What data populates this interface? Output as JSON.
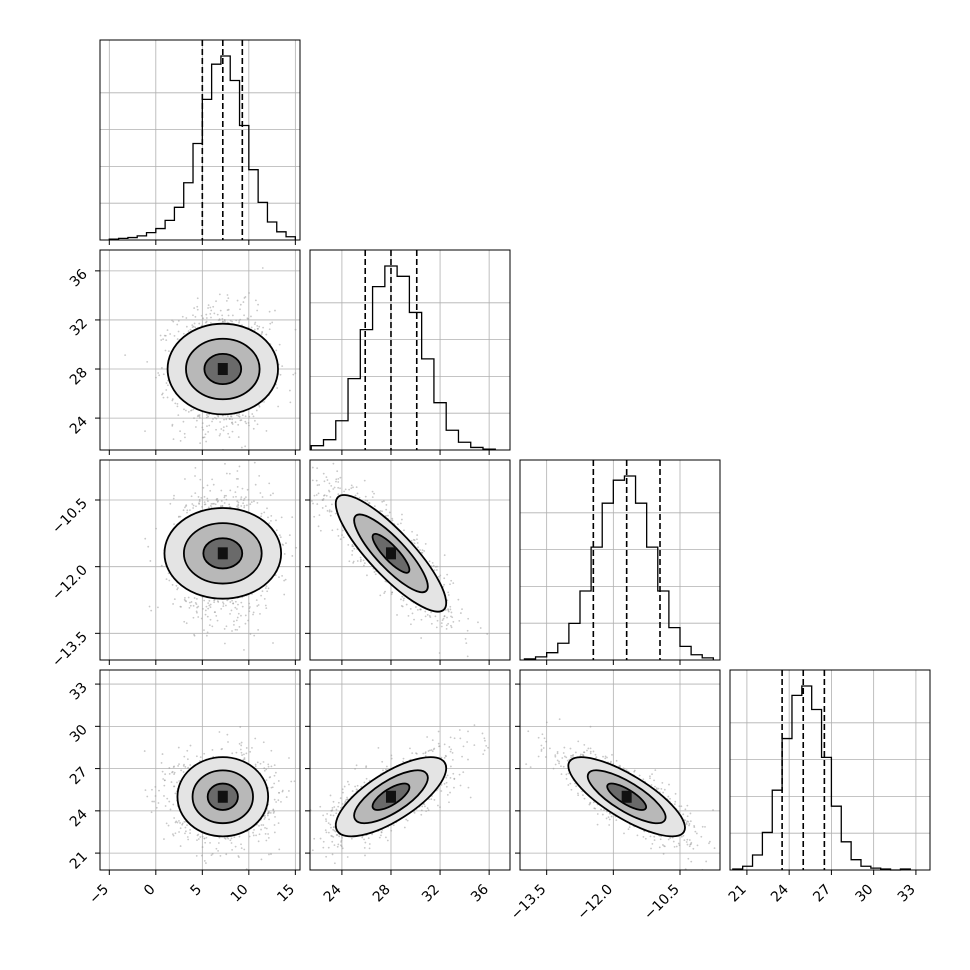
{
  "chart_data": {
    "type": "corner",
    "parameters": [
      {
        "range": [
          -6,
          15.5
        ],
        "ticks": [
          -5,
          0,
          5,
          10,
          15
        ],
        "tick_labels": [
          "−5",
          "0",
          "5",
          "10",
          "15"
        ],
        "mean": 7.2,
        "sd": 2.6,
        "quantiles": [
          5.0,
          7.2,
          9.3
        ]
      },
      {
        "range": [
          21.4,
          37.7
        ],
        "ticks": [
          24,
          28,
          32,
          36
        ],
        "tick_labels": [
          "24",
          "28",
          "32",
          "36"
        ],
        "mean": 28.0,
        "sd": 2.4,
        "quantiles": [
          25.9,
          28.0,
          30.1
        ]
      },
      {
        "range": [
          -14.1,
          -9.6
        ],
        "ticks": [
          -13.5,
          -12.0,
          -10.5
        ],
        "tick_labels": [
          "−13.5",
          "−12.0",
          "−10.5"
        ],
        "mean": -11.7,
        "sd": 0.7,
        "quantiles": [
          -12.45,
          -11.7,
          -10.95
        ]
      },
      {
        "range": [
          19.8,
          34.0
        ],
        "ticks": [
          21,
          24,
          27,
          30,
          33
        ],
        "tick_labels": [
          "21",
          "24",
          "27",
          "30",
          "33"
        ],
        "mean": 25.0,
        "sd": 1.5,
        "quantiles": [
          23.5,
          25.0,
          26.5
        ]
      }
    ],
    "histograms": [
      {
        "param": 0,
        "bin_edges": [
          -5,
          -4,
          -3,
          -2,
          -1,
          0,
          1,
          2,
          3,
          4,
          5,
          6,
          7,
          8,
          9,
          10,
          11,
          12,
          13,
          14,
          15
        ],
        "counts": [
          1,
          2,
          3,
          5,
          9,
          14,
          24,
          40,
          70,
          118,
          172,
          215,
          225,
          195,
          140,
          86,
          46,
          22,
          10,
          4
        ]
      },
      {
        "param": 1,
        "bin_edges": [
          21.5,
          22.5,
          23.5,
          24.5,
          25.5,
          26.5,
          27.5,
          28.5,
          29.5,
          30.5,
          31.5,
          32.5,
          33.5,
          34.5,
          35.5,
          36.5
        ],
        "counts": [
          5,
          12,
          34,
          83,
          140,
          190,
          214,
          202,
          160,
          106,
          55,
          23,
          9,
          3,
          1
        ]
      },
      {
        "param": 2,
        "bin_edges": [
          -14,
          -13.75,
          -13.5,
          -13.25,
          -13,
          -12.75,
          -12.5,
          -12.25,
          -12,
          -11.75,
          -11.5,
          -11.25,
          -11,
          -10.75,
          -10.5,
          -10.25,
          -10,
          -9.75
        ],
        "counts": [
          1,
          3,
          7,
          16,
          35,
          66,
          108,
          150,
          172,
          176,
          150,
          108,
          66,
          31,
          13,
          5,
          2
        ]
      },
      {
        "param": 3,
        "bin_edges": [
          20,
          20.7,
          21.4,
          22.1,
          22.8,
          23.5,
          24.2,
          24.9,
          25.6,
          26.3,
          27,
          27.7,
          28.4,
          29.1,
          29.8,
          30.5,
          31.2,
          31.9,
          32.6
        ],
        "counts": [
          1,
          4,
          16,
          40,
          85,
          140,
          186,
          196,
          171,
          120,
          68,
          30,
          11,
          4,
          2,
          1,
          0,
          1
        ]
      }
    ],
    "correlations": [
      {
        "x_param": 0,
        "y_param": 1,
        "rho": 0.0
      },
      {
        "x_param": 0,
        "y_param": 2,
        "rho": 0.0
      },
      {
        "x_param": 1,
        "y_param": 2,
        "rho": -0.85
      },
      {
        "x_param": 0,
        "y_param": 3,
        "rho": 0.0
      },
      {
        "x_param": 1,
        "y_param": 3,
        "rho": 0.72
      },
      {
        "x_param": 2,
        "y_param": 3,
        "rho": -0.78
      }
    ],
    "contour_levels_sigma": [
      0.5,
      1.0,
      1.5
    ],
    "grid": true,
    "colors": {
      "hist_line": "#000000",
      "contour": "#000000",
      "points": "#9a9a9a",
      "grid": "#b0b0b0",
      "quantile_line": "#000000"
    }
  }
}
